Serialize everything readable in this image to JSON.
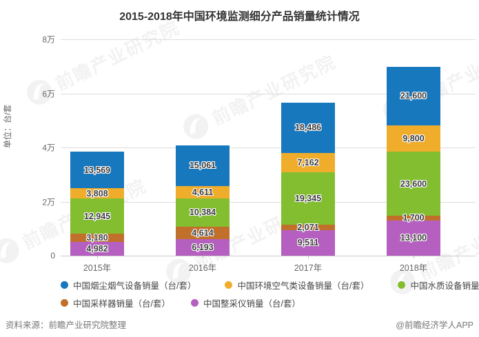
{
  "title": "2015-2018年中国环境监测细分产品销量统计情况",
  "chart_data": {
    "type": "bar",
    "stacked": true,
    "title": "2015-2018年中国环境监测细分产品销量统计情况",
    "xlabel": "",
    "ylabel": "单位：台/套",
    "ylim": [
      0,
      80000
    ],
    "y_tick_labels": [
      "0",
      "2万",
      "4万",
      "6万",
      "8万"
    ],
    "y_tick_values": [
      0,
      20000,
      40000,
      60000,
      80000
    ],
    "grid": true,
    "legend_position": "bottom",
    "categories": [
      "2015年",
      "2016年",
      "2017年",
      "2018年"
    ],
    "series": [
      {
        "name": "中国烟尘烟气设备销量（台/套）",
        "color": "#1878BE",
        "values": [
          13569,
          15061,
          18486,
          21600
        ],
        "labels": [
          "13,569",
          "15,061",
          "18,486",
          "21,600"
        ]
      },
      {
        "name": "中国环境空气类设备销量（台/套）",
        "color": "#EFAD2B",
        "values": [
          3808,
          4611,
          7162,
          9800
        ],
        "labels": [
          "3,808",
          "4,611",
          "7,162",
          "9,800"
        ]
      },
      {
        "name": "中国水质设备销量（台/套）",
        "color": "#82BE30",
        "values": [
          12945,
          10384,
          19345,
          23600
        ],
        "labels": [
          "12,945",
          "10,384",
          "19,345",
          "23,600"
        ]
      },
      {
        "name": "中国采样器销量（台/套）",
        "color": "#C1702B",
        "values": [
          3180,
          4614,
          2071,
          1700
        ],
        "labels": [
          "3,180",
          "4,614",
          "2,071",
          "1,700"
        ]
      },
      {
        "name": "中国整采仪销量（台/套）",
        "color": "#B55FC0",
        "values": [
          4982,
          6193,
          9511,
          13100
        ],
        "labels": [
          "4,982",
          "6,193",
          "9,511",
          "13,100"
        ]
      }
    ]
  },
  "footer": {
    "source": "资料来源：前瞻产业研究院整理",
    "credit": "@前瞻经济学人APP"
  },
  "watermark": {
    "text": "前瞻产业研究院"
  }
}
